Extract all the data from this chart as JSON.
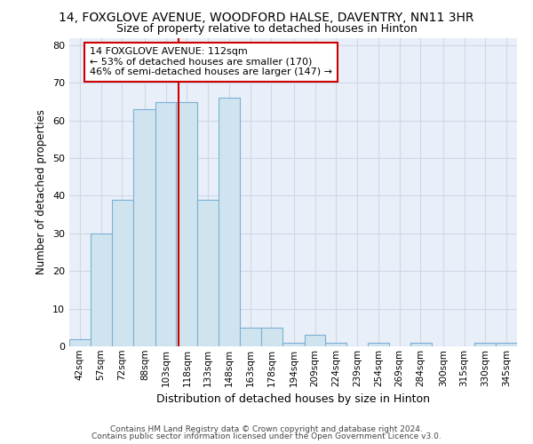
{
  "title": "14, FOXGLOVE AVENUE, WOODFORD HALSE, DAVENTRY, NN11 3HR",
  "subtitle": "Size of property relative to detached houses in Hinton",
  "xlabel": "Distribution of detached houses by size in Hinton",
  "ylabel": "Number of detached properties",
  "bar_color": "#d0e4f0",
  "bar_edge_color": "#7bafd4",
  "categories": [
    "42sqm",
    "57sqm",
    "72sqm",
    "88sqm",
    "103sqm",
    "118sqm",
    "133sqm",
    "148sqm",
    "163sqm",
    "178sqm",
    "194sqm",
    "209sqm",
    "224sqm",
    "239sqm",
    "254sqm",
    "269sqm",
    "284sqm",
    "300sqm",
    "315sqm",
    "330sqm",
    "345sqm"
  ],
  "label_vals": [
    42,
    57,
    72,
    88,
    103,
    118,
    133,
    148,
    163,
    178,
    194,
    209,
    224,
    239,
    254,
    269,
    284,
    300,
    315,
    330,
    345
  ],
  "values": [
    2,
    30,
    39,
    63,
    65,
    65,
    39,
    66,
    5,
    5,
    1,
    3,
    1,
    0,
    1,
    0,
    1,
    0,
    0,
    1,
    1
  ],
  "vline_x": 112,
  "vline_color": "#cc0000",
  "ylim": [
    0,
    82
  ],
  "yticks": [
    0,
    10,
    20,
    30,
    40,
    50,
    60,
    70,
    80
  ],
  "annotation_line1": "14 FOXGLOVE AVENUE: 112sqm",
  "annotation_line2": "← 53% of detached houses are smaller (170)",
  "annotation_line3": "46% of semi-detached houses are larger (147) →",
  "annotation_box_color": "#ffffff",
  "annotation_box_edge": "#cc0000",
  "grid_color": "#d0d8e8",
  "bg_color": "#e8eff8",
  "footer1": "Contains HM Land Registry data © Crown copyright and database right 2024.",
  "footer2": "Contains public sector information licensed under the Open Government Licence v3.0.",
  "title_fontsize": 10,
  "subtitle_fontsize": 9
}
